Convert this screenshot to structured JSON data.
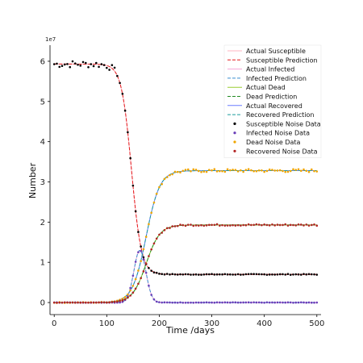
{
  "chart_data": {
    "type": "line",
    "title": "",
    "xlabel": "Time /days",
    "ylabel": "Number",
    "y_scale_label": "1e7",
    "xlim": [
      -8,
      508
    ],
    "ylim": [
      -0.3,
      6.4
    ],
    "y_multiplier": 10000000,
    "xticks": [
      0,
      100,
      200,
      300,
      400,
      500
    ],
    "yticks": [
      0,
      1,
      2,
      3,
      4,
      5,
      6
    ],
    "legend_position": "top-right",
    "sample_step_days": 5,
    "model": {
      "total_population": 5.93,
      "susceptible_final": 0.7,
      "dead_final": 1.93,
      "recovered_final": 3.28,
      "infected_peak": 1.3,
      "infected_peak_day": 163,
      "epidemic_midpoint_day": 155
    },
    "series": [
      {
        "name": "Actual Susceptible",
        "key": "S",
        "kind": "line",
        "color": "#ffb6c1",
        "dash": "",
        "width": 1
      },
      {
        "name": "Susceptible Prediction",
        "key": "S",
        "kind": "line",
        "color": "#e31a1c",
        "dash": "4,2",
        "width": 1
      },
      {
        "name": "Actual Infected",
        "key": "I",
        "kind": "line",
        "color": "#f4a6d7",
        "dash": "",
        "width": 1
      },
      {
        "name": "Infected Prediction",
        "key": "I",
        "kind": "line",
        "color": "#3a8fd0",
        "dash": "4,2",
        "width": 1
      },
      {
        "name": "Actual Dead",
        "key": "D",
        "kind": "line",
        "color": "#9acd32",
        "dash": "",
        "width": 1
      },
      {
        "name": "Dead Prediction",
        "key": "D",
        "kind": "line",
        "color": "#228b22",
        "dash": "4,2",
        "width": 1
      },
      {
        "name": "Actual Recovered",
        "key": "R",
        "kind": "line",
        "color": "#6a7dff",
        "dash": "",
        "width": 1
      },
      {
        "name": "Recovered Prediction",
        "key": "R",
        "kind": "line",
        "color": "#1a9a9a",
        "dash": "4,2",
        "width": 1
      },
      {
        "name": "Susceptible Noise Data",
        "key": "S",
        "kind": "points",
        "color": "#000000"
      },
      {
        "name": "Infected Noise Data",
        "key": "I",
        "kind": "points",
        "color": "#6a3db8"
      },
      {
        "name": "Dead Noise Data",
        "key": "R",
        "kind": "points",
        "color": "#f0a500"
      },
      {
        "name": "Recovered Noise Data",
        "key": "D",
        "kind": "points",
        "color": "#b22222"
      }
    ]
  }
}
